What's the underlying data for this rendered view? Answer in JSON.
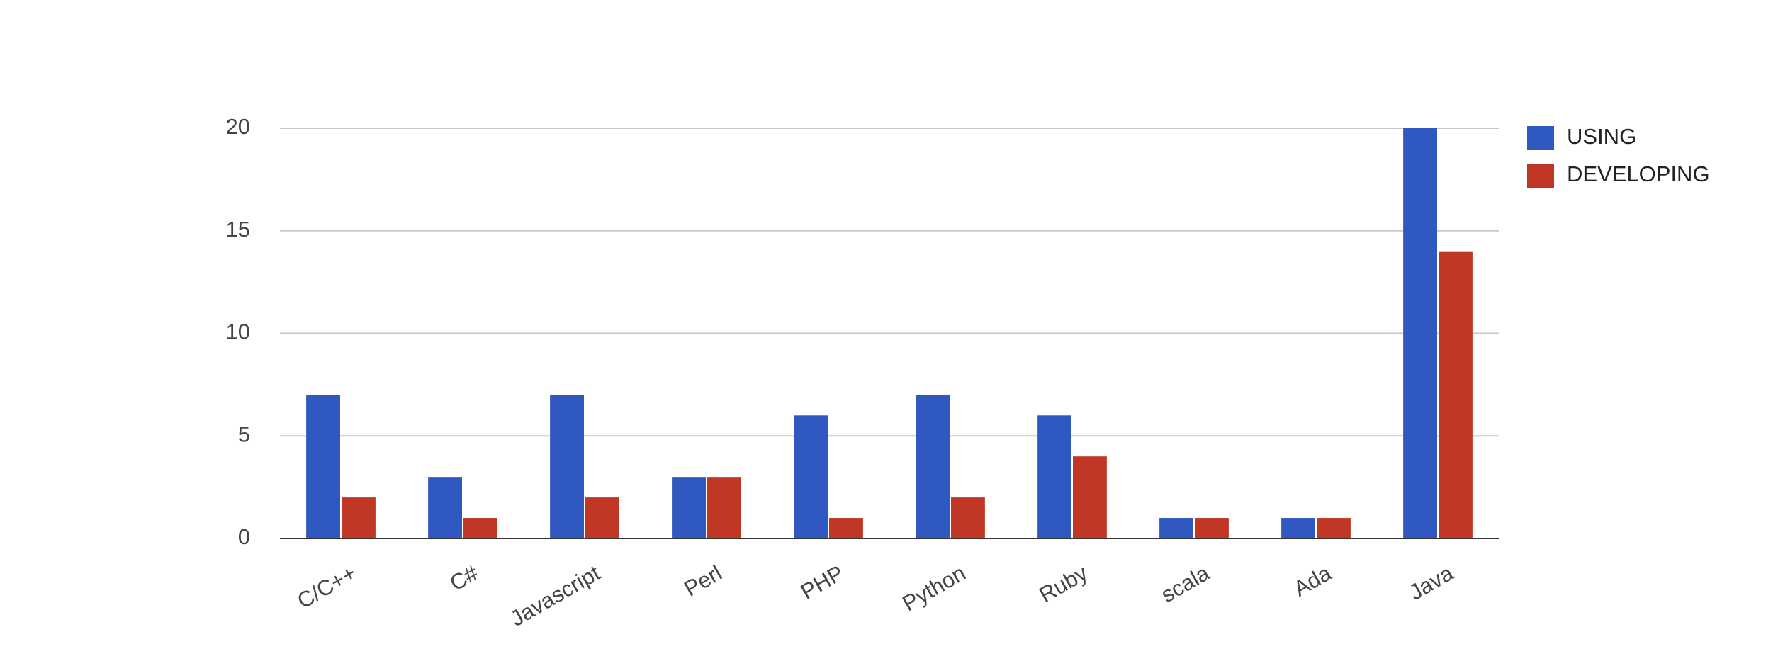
{
  "chart_data": {
    "type": "bar",
    "categories": [
      "C/C++",
      "C#",
      "Javascript",
      "Perl",
      "PHP",
      "Python",
      "Ruby",
      "scala",
      "Ada",
      "Java"
    ],
    "series": [
      {
        "name": "USING",
        "color": "#2f58c1",
        "values": [
          7,
          3,
          7,
          3,
          6,
          7,
          6,
          1,
          1,
          20
        ]
      },
      {
        "name": "DEVELOPING",
        "color": "#c13725",
        "values": [
          2,
          1,
          2,
          3,
          1,
          2,
          4,
          1,
          1,
          14
        ]
      }
    ],
    "ylim": [
      0,
      20
    ],
    "yticks": [
      0,
      5,
      10,
      15,
      20
    ],
    "grid": true,
    "legend": "right"
  }
}
